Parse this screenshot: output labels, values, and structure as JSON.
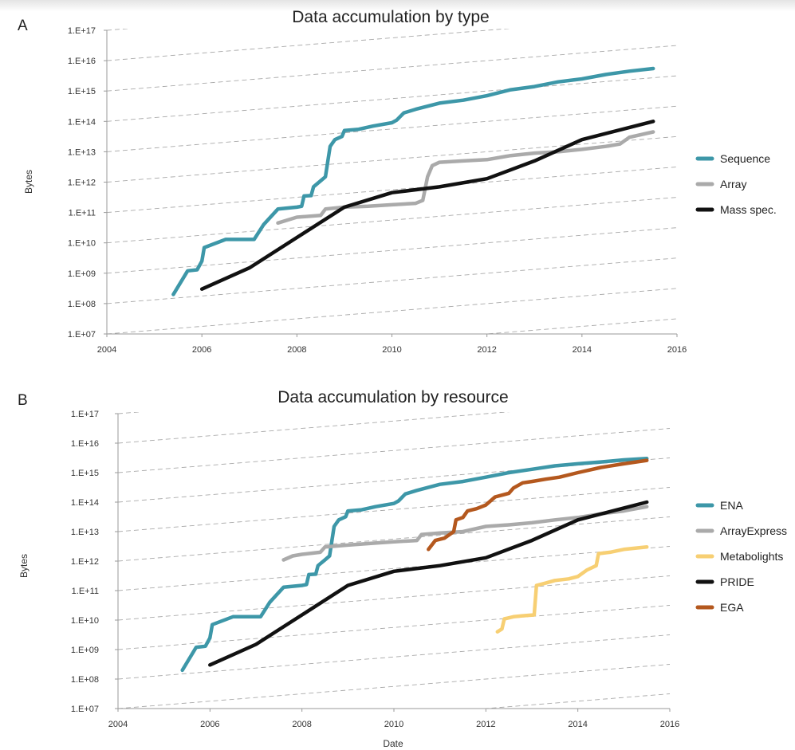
{
  "chart_data": [
    {
      "panel": "A",
      "type": "line",
      "title": "Data accumulation by type",
      "xlabel": "",
      "ylabel": "Bytes",
      "xlim": [
        2004,
        2016
      ],
      "ylim": [
        10000000.0,
        1e+17
      ],
      "yscale": "log",
      "grid": "dashed diagonal guide lines",
      "legend_position": "right",
      "x_ticks": [
        "2004",
        "2006",
        "2008",
        "2010",
        "2012",
        "2014",
        "2016"
      ],
      "y_ticks": [
        "1.E+07",
        "1.E+08",
        "1.E+09",
        "1.E+10",
        "1.E+11",
        "1.E+12",
        "1.E+13",
        "1.E+14",
        "1.E+15",
        "1.E+16",
        "1.E+17"
      ],
      "series": [
        {
          "name": "Sequence",
          "color": "#3d97a8",
          "points": [
            [
              2005.4,
              200000000.0
            ],
            [
              2005.7,
              1200000000.0
            ],
            [
              2005.9,
              1300000000.0
            ],
            [
              2006.0,
              2500000000.0
            ],
            [
              2006.05,
              7000000000.0
            ],
            [
              2006.5,
              13000000000.0
            ],
            [
              2007.1,
              13000000000.0
            ],
            [
              2007.3,
              40000000000.0
            ],
            [
              2007.6,
              130000000000.0
            ],
            [
              2008.0,
              150000000000.0
            ],
            [
              2008.1,
              160000000000.0
            ],
            [
              2008.15,
              350000000000.0
            ],
            [
              2008.3,
              360000000000.0
            ],
            [
              2008.35,
              700000000000.0
            ],
            [
              2008.5,
              1100000000000.0
            ],
            [
              2008.6,
              1500000000000.0
            ],
            [
              2008.7,
              15000000000000.0
            ],
            [
              2008.8,
              25000000000000.0
            ],
            [
              2008.95,
              32000000000000.0
            ],
            [
              2009.0,
              50000000000000.0
            ],
            [
              2009.3,
              55000000000000.0
            ],
            [
              2009.6,
              70000000000000.0
            ],
            [
              2010.0,
              90000000000000.0
            ],
            [
              2010.1,
              110000000000000.0
            ],
            [
              2010.25,
              190000000000000.0
            ],
            [
              2010.5,
              250000000000000.0
            ],
            [
              2011.0,
              400000000000000.0
            ],
            [
              2011.5,
              500000000000000.0
            ],
            [
              2012.0,
              700000000000000.0
            ],
            [
              2012.5,
              1100000000000000.0
            ],
            [
              2013.0,
              1400000000000000.0
            ],
            [
              2013.5,
              2000000000000000.0
            ],
            [
              2014.0,
              2500000000000000.0
            ],
            [
              2014.5,
              3500000000000000.0
            ],
            [
              2015.0,
              4500000000000000.0
            ],
            [
              2015.5,
              5500000000000000.0
            ]
          ]
        },
        {
          "name": "Array",
          "color": "#aaaaaa",
          "points": [
            [
              2007.6,
              45000000000.0
            ],
            [
              2008.0,
              70000000000.0
            ],
            [
              2008.5,
              80000000000.0
            ],
            [
              2008.6,
              130000000000.0
            ],
            [
              2009.0,
              150000000000.0
            ],
            [
              2009.5,
              160000000000.0
            ],
            [
              2010.0,
              180000000000.0
            ],
            [
              2010.5,
              200000000000.0
            ],
            [
              2010.65,
              250000000000.0
            ],
            [
              2010.75,
              1500000000000.0
            ],
            [
              2010.85,
              3500000000000.0
            ],
            [
              2011.0,
              4500000000000.0
            ],
            [
              2011.5,
              5000000000000.0
            ],
            [
              2012.0,
              5500000000000.0
            ],
            [
              2012.5,
              7500000000000.0
            ],
            [
              2013.0,
              9000000000000.0
            ],
            [
              2013.5,
              10000000000000.0
            ],
            [
              2014.0,
              12000000000000.0
            ],
            [
              2014.5,
              15000000000000.0
            ],
            [
              2014.8,
              18000000000000.0
            ],
            [
              2015.0,
              30000000000000.0
            ],
            [
              2015.5,
              45000000000000.0
            ]
          ]
        },
        {
          "name": "Mass spec.",
          "color": "#111111",
          "points": [
            [
              2006.0,
              300000000.0
            ],
            [
              2007.0,
              1500000000.0
            ],
            [
              2008.0,
              15000000000.0
            ],
            [
              2009.0,
              150000000000.0
            ],
            [
              2010.0,
              450000000000.0
            ],
            [
              2011.0,
              700000000000.0
            ],
            [
              2012.0,
              1300000000000.0
            ],
            [
              2013.0,
              5000000000000.0
            ],
            [
              2014.0,
              25000000000000.0
            ],
            [
              2015.5,
              100000000000000.0
            ]
          ]
        }
      ]
    },
    {
      "panel": "B",
      "type": "line",
      "title": "Data accumulation by resource",
      "xlabel": "Date",
      "ylabel": "Bytes",
      "xlim": [
        2004,
        2016
      ],
      "ylim": [
        10000000.0,
        1e+17
      ],
      "yscale": "log",
      "grid": "dashed diagonal guide lines",
      "legend_position": "right",
      "x_ticks": [
        "2004",
        "2006",
        "2008",
        "2010",
        "2012",
        "2014",
        "2016"
      ],
      "y_ticks": [
        "1.E+07",
        "1.E+08",
        "1.E+09",
        "1.E+10",
        "1.E+11",
        "1.E+12",
        "1.E+13",
        "1.E+14",
        "1.E+15",
        "1.E+16",
        "1.E+17"
      ],
      "series": [
        {
          "name": "ENA",
          "color": "#3d97a8",
          "points": [
            [
              2005.4,
              200000000.0
            ],
            [
              2005.7,
              1200000000.0
            ],
            [
              2005.9,
              1300000000.0
            ],
            [
              2006.0,
              2500000000.0
            ],
            [
              2006.05,
              7000000000.0
            ],
            [
              2006.5,
              13000000000.0
            ],
            [
              2007.1,
              13000000000.0
            ],
            [
              2007.3,
              40000000000.0
            ],
            [
              2007.6,
              130000000000.0
            ],
            [
              2008.0,
              150000000000.0
            ],
            [
              2008.1,
              160000000000.0
            ],
            [
              2008.15,
              350000000000.0
            ],
            [
              2008.3,
              360000000000.0
            ],
            [
              2008.35,
              700000000000.0
            ],
            [
              2008.5,
              1100000000000.0
            ],
            [
              2008.6,
              1500000000000.0
            ],
            [
              2008.7,
              15000000000000.0
            ],
            [
              2008.8,
              25000000000000.0
            ],
            [
              2008.95,
              32000000000000.0
            ],
            [
              2009.0,
              50000000000000.0
            ],
            [
              2009.3,
              55000000000000.0
            ],
            [
              2009.6,
              70000000000000.0
            ],
            [
              2010.0,
              90000000000000.0
            ],
            [
              2010.1,
              110000000000000.0
            ],
            [
              2010.25,
              190000000000000.0
            ],
            [
              2010.5,
              250000000000000.0
            ],
            [
              2011.0,
              400000000000000.0
            ],
            [
              2011.5,
              500000000000000.0
            ],
            [
              2012.0,
              700000000000000.0
            ],
            [
              2012.5,
              1000000000000000.0
            ],
            [
              2013.0,
              1300000000000000.0
            ],
            [
              2013.5,
              1700000000000000.0
            ],
            [
              2014.0,
              2000000000000000.0
            ],
            [
              2014.5,
              2300000000000000.0
            ],
            [
              2015.0,
              2700000000000000.0
            ],
            [
              2015.5,
              3000000000000000.0
            ]
          ]
        },
        {
          "name": "ArrayExpress",
          "color": "#aaaaaa",
          "points": [
            [
              2007.6,
              1100000000000.0
            ],
            [
              2007.8,
              1500000000000.0
            ],
            [
              2008.0,
              1700000000000.0
            ],
            [
              2008.4,
              2000000000000.0
            ],
            [
              2008.5,
              3000000000000.0
            ],
            [
              2009.0,
              3500000000000.0
            ],
            [
              2009.5,
              4000000000000.0
            ],
            [
              2010.0,
              4500000000000.0
            ],
            [
              2010.5,
              5000000000000.0
            ],
            [
              2010.6,
              8000000000000.0
            ],
            [
              2011.0,
              9000000000000.0
            ],
            [
              2011.5,
              10000000000000.0
            ],
            [
              2012.0,
              15000000000000.0
            ],
            [
              2012.5,
              17000000000000.0
            ],
            [
              2013.0,
              20000000000000.0
            ],
            [
              2013.5,
              25000000000000.0
            ],
            [
              2014.0,
              30000000000000.0
            ],
            [
              2014.5,
              40000000000000.0
            ],
            [
              2015.0,
              50000000000000.0
            ],
            [
              2015.5,
              70000000000000.0
            ]
          ]
        },
        {
          "name": "Metabolights",
          "color": "#f7cf73",
          "points": [
            [
              2012.25,
              4000000000.0
            ],
            [
              2012.35,
              5000000000.0
            ],
            [
              2012.4,
              11000000000.0
            ],
            [
              2012.6,
              13000000000.0
            ],
            [
              2012.8,
              14000000000.0
            ],
            [
              2013.05,
              15000000000.0
            ],
            [
              2013.1,
              150000000000.0
            ],
            [
              2013.3,
              180000000000.0
            ],
            [
              2013.5,
              220000000000.0
            ],
            [
              2013.8,
              250000000000.0
            ],
            [
              2014.0,
              300000000000.0
            ],
            [
              2014.2,
              500000000000.0
            ],
            [
              2014.4,
              700000000000.0
            ],
            [
              2014.45,
              1800000000000.0
            ],
            [
              2014.7,
              2000000000000.0
            ],
            [
              2015.0,
              2500000000000.0
            ],
            [
              2015.5,
              3000000000000.0
            ]
          ]
        },
        {
          "name": "PRIDE",
          "color": "#111111",
          "points": [
            [
              2006.0,
              300000000.0
            ],
            [
              2007.0,
              1500000000.0
            ],
            [
              2008.0,
              15000000000.0
            ],
            [
              2009.0,
              150000000000.0
            ],
            [
              2010.0,
              450000000000.0
            ],
            [
              2011.0,
              700000000000.0
            ],
            [
              2012.0,
              1300000000000.0
            ],
            [
              2013.0,
              5000000000000.0
            ],
            [
              2014.0,
              25000000000000.0
            ],
            [
              2015.5,
              100000000000000.0
            ]
          ]
        },
        {
          "name": "EGA",
          "color": "#b4581e",
          "points": [
            [
              2010.75,
              2500000000000.0
            ],
            [
              2010.9,
              5000000000000.0
            ],
            [
              2011.1,
              6000000000000.0
            ],
            [
              2011.3,
              10000000000000.0
            ],
            [
              2011.35,
              25000000000000.0
            ],
            [
              2011.5,
              30000000000000.0
            ],
            [
              2011.6,
              50000000000000.0
            ],
            [
              2011.8,
              60000000000000.0
            ],
            [
              2012.0,
              80000000000000.0
            ],
            [
              2012.2,
              150000000000000.0
            ],
            [
              2012.5,
              200000000000000.0
            ],
            [
              2012.6,
              300000000000000.0
            ],
            [
              2012.8,
              450000000000000.0
            ],
            [
              2013.0,
              500000000000000.0
            ],
            [
              2013.3,
              600000000000000.0
            ],
            [
              2013.6,
              700000000000000.0
            ],
            [
              2014.0,
              1000000000000000.0
            ],
            [
              2014.5,
              1500000000000000.0
            ],
            [
              2015.0,
              2000000000000000.0
            ],
            [
              2015.5,
              2600000000000000.0
            ]
          ]
        }
      ]
    }
  ]
}
